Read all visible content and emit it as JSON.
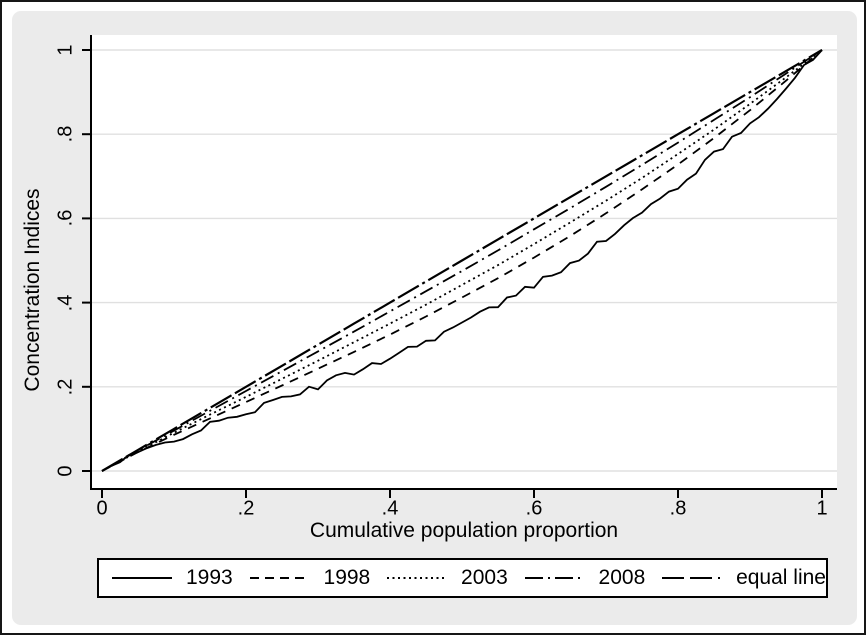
{
  "chart_data": {
    "type": "line",
    "title": "",
    "xlabel": "Cumulative population proportion",
    "ylabel": "Concentration Indices",
    "xlim": [
      0,
      1
    ],
    "ylim": [
      0,
      1
    ],
    "xticks": [
      "0",
      ".2",
      ".4",
      ".6",
      ".8",
      "1"
    ],
    "xtick_values": [
      0,
      0.2,
      0.4,
      0.6,
      0.8,
      1
    ],
    "yticks": [
      "0",
      ".2",
      ".4",
      ".6",
      ".8",
      "1"
    ],
    "ytick_values": [
      0,
      0.2,
      0.4,
      0.6,
      0.8,
      1
    ],
    "grid": "horizontal-gridlines",
    "legend_position": "bottom",
    "x": [
      0,
      0.05,
      0.1,
      0.15,
      0.2,
      0.25,
      0.3,
      0.35,
      0.4,
      0.45,
      0.5,
      0.55,
      0.6,
      0.65,
      0.7,
      0.75,
      0.8,
      0.85,
      0.9,
      0.95,
      1
    ],
    "series": [
      {
        "name": "1993",
        "line_style": "solid",
        "jagged": true,
        "values": [
          0,
          0.041,
          0.076,
          0.108,
          0.139,
          0.17,
          0.202,
          0.236,
          0.271,
          0.309,
          0.35,
          0.394,
          0.442,
          0.494,
          0.551,
          0.612,
          0.678,
          0.75,
          0.827,
          0.911,
          1
        ]
      },
      {
        "name": "1998",
        "line_style": "dash",
        "jagged": false,
        "values": [
          0,
          0.045,
          0.086,
          0.125,
          0.164,
          0.203,
          0.243,
          0.283,
          0.324,
          0.367,
          0.412,
          0.458,
          0.507,
          0.558,
          0.612,
          0.669,
          0.728,
          0.791,
          0.857,
          0.927,
          1
        ]
      },
      {
        "name": "2003",
        "line_style": "dot",
        "jagged": false,
        "values": [
          0,
          0.046,
          0.091,
          0.134,
          0.176,
          0.219,
          0.262,
          0.306,
          0.35,
          0.395,
          0.442,
          0.489,
          0.539,
          0.59,
          0.642,
          0.696,
          0.753,
          0.811,
          0.872,
          0.935,
          1
        ]
      },
      {
        "name": "2008",
        "line_style": "dash_dot",
        "jagged": false,
        "values": [
          0,
          0.049,
          0.096,
          0.143,
          0.19,
          0.237,
          0.284,
          0.331,
          0.379,
          0.427,
          0.475,
          0.524,
          0.574,
          0.624,
          0.675,
          0.727,
          0.78,
          0.834,
          0.888,
          0.944,
          1
        ]
      },
      {
        "name": "equal line",
        "line_style": "longdash_dot",
        "jagged": false,
        "values": [
          0,
          0.05,
          0.1,
          0.15,
          0.2,
          0.25,
          0.3,
          0.35,
          0.4,
          0.45,
          0.5,
          0.55,
          0.6,
          0.65,
          0.7,
          0.75,
          0.8,
          0.85,
          0.9,
          0.95,
          1
        ]
      }
    ],
    "colors": {
      "line": "#000000",
      "figure_background": "#ebebeb",
      "plot_background": "#ffffff",
      "gridline": "#e0e0e0",
      "border": "#161616"
    }
  }
}
